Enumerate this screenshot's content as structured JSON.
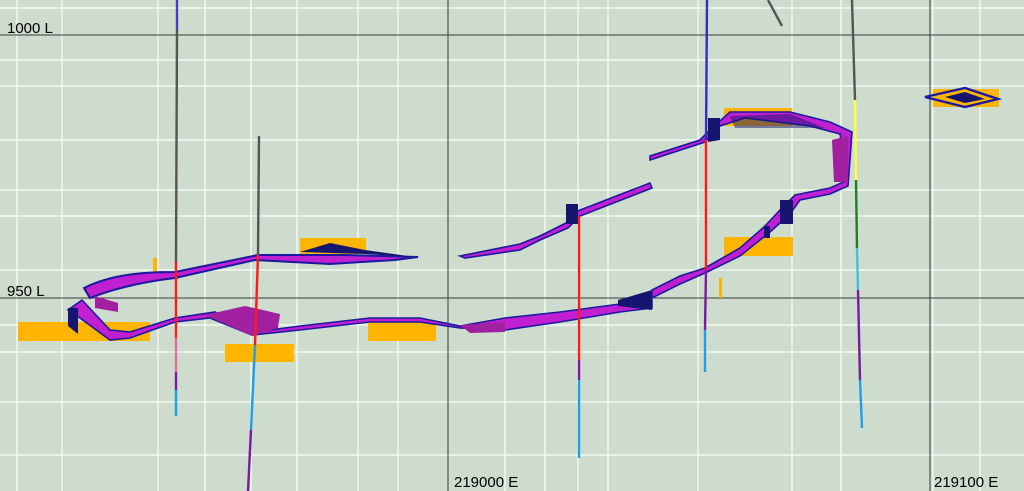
{
  "view": {
    "background": "#cddccd",
    "minor_grid_color": "#f4f8f4",
    "major_grid_color": "#3a3a3a"
  },
  "level_labels": [
    "1000 L",
    "950 L"
  ],
  "easting_labels": [
    "219000 E",
    "219100 E"
  ],
  "colors": {
    "vein_outline": "#1a1aa0",
    "vein_fill": "#c020d0",
    "vein_dark": "#151570",
    "ore_block": "#ffb400",
    "drillhole_gray": "#555555",
    "drillhole_red": "#ff1a1a",
    "drillhole_cyan": "#1ea0e6",
    "drillhole_purple": "#7a1aa0",
    "drillhole_yellow": "#ffff40",
    "drillhole_green": "#208020"
  }
}
